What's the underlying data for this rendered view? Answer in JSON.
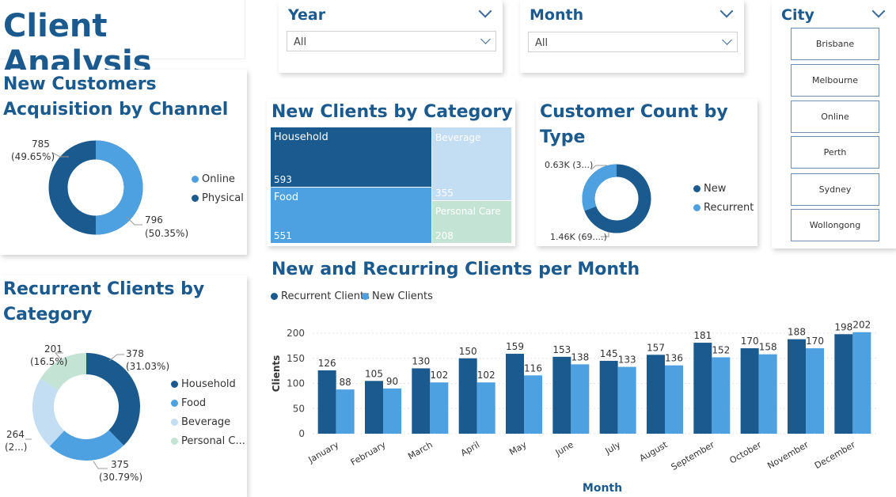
{
  "page_title": "Client Analysis",
  "colors": {
    "dark": "#1a5a8e",
    "mid": "#4ea1e0",
    "light": "#c3ddf3",
    "mint": "#c3e3d4"
  },
  "slicers": {
    "year": {
      "label": "Year",
      "value": "All"
    },
    "month": {
      "label": "Month",
      "value": "All"
    },
    "city": {
      "label": "City",
      "options": [
        "Brisbane",
        "Melbourne",
        "Online",
        "Perth",
        "Sydney",
        "Wollongong"
      ]
    }
  },
  "acquisition": {
    "title_line1": "New Customers",
    "title_line2": "Acquisition by Channel",
    "legend": [
      "Online",
      "Physical"
    ],
    "label_physical": [
      "785",
      "(49.65%)"
    ],
    "label_online": [
      "796",
      "(50.35%)"
    ]
  },
  "treemap": {
    "title": "New Clients by Category",
    "tiles": [
      {
        "name": "Household",
        "value": "593"
      },
      {
        "name": "Food",
        "value": "551"
      },
      {
        "name": "Beverage",
        "value": "355"
      },
      {
        "name": "Personal Care",
        "value": "208"
      }
    ]
  },
  "customer_type": {
    "title_line1": "Customer Count by",
    "title_line2": "Type",
    "legend": [
      "New",
      "Recurrent"
    ],
    "label_recurrent": "0.63K (3...)",
    "label_new": "1.46K (69....)"
  },
  "recurrent_category": {
    "title_line1": "Recurrent Clients by",
    "title_line2": "Category",
    "legend": [
      "Household",
      "Food",
      "Beverage",
      "Personal C..."
    ],
    "labels": {
      "household": [
        "378",
        "(31.03%)"
      ],
      "food": [
        "375",
        "(30.79%)"
      ],
      "beverage": [
        "264",
        "(2...)"
      ],
      "personal": [
        "201",
        "(16.5%)"
      ]
    }
  },
  "chart_data": {
    "type": "bar",
    "title": "New and Recurring Clients per Month",
    "xlabel": "Month",
    "ylabel": "Clients",
    "ylim": [
      0,
      210
    ],
    "yticks": [
      0,
      50,
      100,
      150,
      200
    ],
    "categories": [
      "January",
      "February",
      "March",
      "April",
      "May",
      "June",
      "July",
      "August",
      "September",
      "October",
      "November",
      "December"
    ],
    "series": [
      {
        "name": "Recurrent Clients",
        "color": "#1a5a8e",
        "values": [
          126,
          105,
          130,
          150,
          159,
          153,
          145,
          157,
          181,
          170,
          188,
          198
        ]
      },
      {
        "name": "New Clients",
        "color": "#4ea1e0",
        "values": [
          88,
          90,
          102,
          102,
          116,
          138,
          133,
          136,
          152,
          158,
          170,
          202
        ]
      }
    ],
    "legend_position": "top-left",
    "grid": true
  }
}
